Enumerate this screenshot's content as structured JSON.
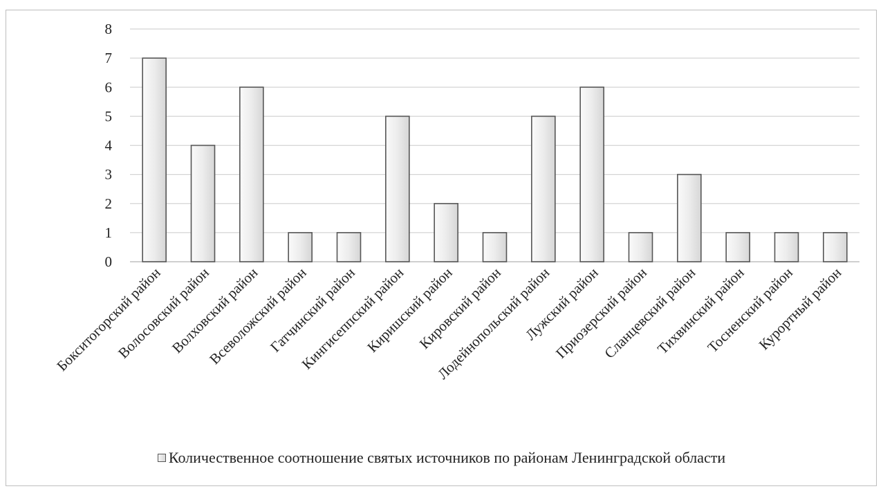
{
  "chart_data": {
    "type": "bar",
    "categories": [
      "Бокситогорский район",
      "Волосовский район",
      "Волховский район",
      "Всеволожский район",
      "Гатчинский район",
      "Кингисеппский район",
      "Киришский район",
      "Кировский район",
      "Лодейнопольский район",
      "Лужский район",
      "Приозерский район",
      "Сланцевский район",
      "Тихвинский район",
      "Тосненский район",
      "Курортный район"
    ],
    "series": [
      {
        "name": "Количественное соотношение святых источников по районам Ленинградской области",
        "values": [
          7,
          4,
          6,
          1,
          1,
          5,
          2,
          1,
          5,
          6,
          1,
          3,
          1,
          1,
          1
        ]
      }
    ],
    "yticks": [
      "0",
      "1",
      "2",
      "3",
      "4",
      "5",
      "6",
      "7",
      "8"
    ],
    "ylim": [
      0,
      8
    ],
    "grid": true,
    "legend_position": "bottom",
    "bar_fill": "#e8e8e8",
    "bar_stroke": "#555555",
    "grid_color": "#d4d4d4"
  }
}
